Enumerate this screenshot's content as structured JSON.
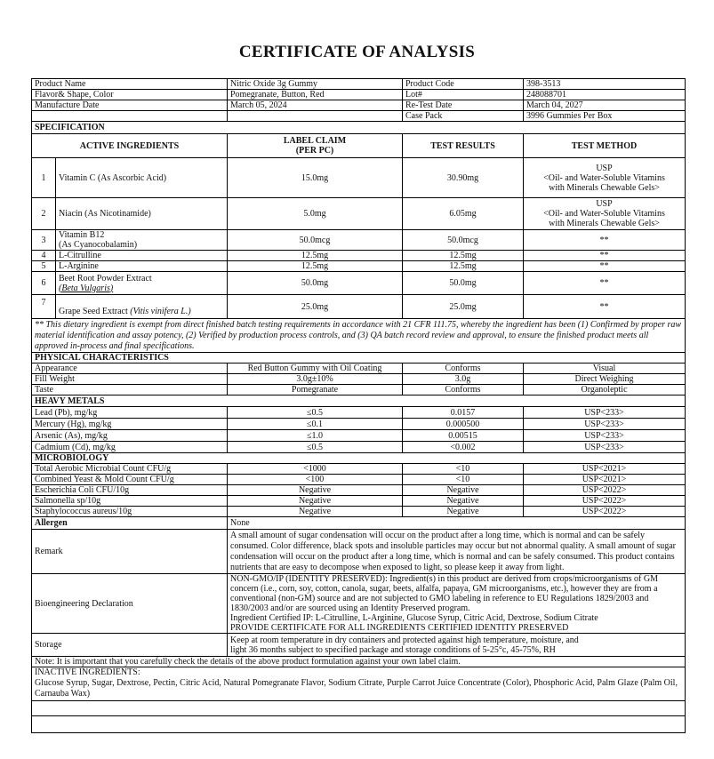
{
  "title": "CERTIFICATE OF ANALYSIS",
  "info": {
    "product_name_label": "Product Name",
    "product_name": "Nitric Oxide 3g Gummy",
    "product_code_label": "Product Code",
    "product_code": "398-3513",
    "flavor_label": "Flavor& Shape, Color",
    "flavor": "Pomegranate, Button, Red",
    "lot_label": "Lot#",
    "lot": "248088701",
    "mfg_label": "Manufacture Date",
    "mfg": "March 05, 2024",
    "retest_label": "Re-Test Date",
    "retest": "March 04, 2027",
    "case_label": "Case Pack",
    "case": "3996 Gummies Per Box"
  },
  "specification": {
    "heading": "SPECIFICATION",
    "headers": {
      "ingredients": "ACTIVE INGREDIENTS",
      "claim_1": "LABEL CLAIM",
      "claim_2": "(PER PC)",
      "results": "TEST RESULTS",
      "method": "TEST METHOD"
    },
    "rows": [
      {
        "num": "1",
        "name": "Vitamin C (As Ascorbic Acid)",
        "claim": "15.0mg",
        "result": "30.90mg",
        "method_1": "USP",
        "method_2": "<Oil- and Water-Soluble Vitamins",
        "method_3": "with Minerals Chewable Gels>"
      },
      {
        "num": "2",
        "name": "Niacin (As Nicotinamide)",
        "claim": "5.0mg",
        "result": "6.05mg",
        "method_1": "USP",
        "method_2": "<Oil- and Water-Soluble Vitamins",
        "method_3": "with Minerals Chewable Gels>"
      },
      {
        "num": "3",
        "name": "Vitamin B12",
        "name_2": "(As Cyanocobalamin)",
        "claim": "50.0mcg",
        "result": "50.0mcg",
        "method": "**"
      },
      {
        "num": "4",
        "name": "L-Citrulline",
        "claim": "12.5mg",
        "result": "12.5mg",
        "method": "**"
      },
      {
        "num": "5",
        "name": "L-Arginine",
        "claim": "12.5mg",
        "result": "12.5mg",
        "method": "**"
      },
      {
        "num": "6",
        "name": "Beet Root Powder Extract",
        "name_2": "(Beta Vulgaris)",
        "claim": "50.0mg",
        "result": "50.0mg",
        "method": "**"
      },
      {
        "num": "7",
        "name": "Grape Seed Extract ",
        "name_2": "(Vitis vinifera L.)",
        "claim": "25.0mg",
        "result": "25.0mg",
        "method": "**"
      }
    ],
    "footnote": "** This dietary ingredient is exempt from direct finished batch testing requirements in accordance with 21 CFR 111.75, whereby the ingredient has been (1) Confirmed by proper raw material identification and assay potency, (2) Verified by production process controls, and (3) QA batch record review and approval, to ensure the finished product meets all approved in-process and final specifications."
  },
  "physical": {
    "heading": "PHYSICAL CHARACTERISTICS",
    "rows": [
      {
        "name": "Appearance",
        "spec": "Red Button Gummy with Oil Coating",
        "result": "Conforms",
        "method": "Visual"
      },
      {
        "name": "Fill Weight",
        "spec": "3.0g±10%",
        "result": "3.0g",
        "method": "Direct Weighing"
      },
      {
        "name": "Taste",
        "spec": "Pomegranate",
        "result": "Conforms",
        "method": "Organoleptic"
      }
    ]
  },
  "heavy_metals": {
    "heading": "HEAVY METALS",
    "rows": [
      {
        "name": "Lead (Pb), mg/kg",
        "spec": "≤0.5",
        "result": "0.0157",
        "method": "USP<233>"
      },
      {
        "name": "Mercury (Hg), mg/kg",
        "spec": "≤0.1",
        "result": "0.000500",
        "method": "USP<233>"
      },
      {
        "name": "Arsenic (As), mg/kg",
        "spec": "≤1.0",
        "result": "0.00515",
        "method": "USP<233>"
      },
      {
        "name": "Cadmium (Cd), mg/kg",
        "spec": "≤0.5",
        "result": "<0.002",
        "method": "USP<233>"
      }
    ]
  },
  "microbiology": {
    "heading": "MICROBIOLOGY",
    "rows": [
      {
        "name": "Total Aerobic Microbial Count CFU/g",
        "spec": "<1000",
        "result": "<10",
        "method": "USP<2021>"
      },
      {
        "name": "Combined Yeast & Mold Count CFU/g",
        "spec": "<100",
        "result": "<10",
        "method": "USP<2021>"
      },
      {
        "name": "Escherichia Coli CFU/10g",
        "spec": "Negative",
        "result": "Negative",
        "method": "USP<2022>"
      },
      {
        "name": "Salmonella sp/10g",
        "spec": "Negative",
        "result": "Negative",
        "method": "USP<2022>"
      },
      {
        "name": "Staphylococcus aureus/10g",
        "spec": "Negative",
        "result": "Negative",
        "method": "USP<2022>"
      }
    ]
  },
  "allergen": {
    "label": "Allergen",
    "value": "None"
  },
  "remark": {
    "label": "Remark",
    "value": "A small amount of sugar condensation will occur on the product after a long time, which is normal and can be safely consumed. Color difference, black spots and insoluble particles may occur but not abnormal quality. A small amount of sugar condensation will occur on the product after a long time, which is normal and can be safely consumed. This product contains nutrients that are easy to decompose when exposed to light, so please keep it away from light."
  },
  "bioengineering": {
    "label": "Bioengineering Declaration",
    "line_1": "NON-GMO/IP (IDENTITY PRESERVED): Ingredient(s) in this product are derived from crops/microorganisms of GM concern (i.e., corn, soy, cotton, canola, sugar, beets, alfalfa, papaya, GM microorganisms, etc.), however they are from a conventional (non-GM) source and are not subjected to GMO labeling in reference to EU Regulations 1829/2003 and 1830/2003 and/or are sourced using an Identity Preserved program.",
    "line_2": "Ingredient Certified IP: L-Citrulline, L-Arginine, Glucose Syrup, Citric Acid, Dextrose, Sodium Citrate",
    "line_3": "PROVIDE CERTIFICATE FOR ALL INGREDIENTS CERTIFIED IDENTITY PRESERVED"
  },
  "storage": {
    "label": "Storage",
    "line_1": "Keep at room temperature in dry containers and protected against high temperature, moisture, and",
    "line_2": "light 36 months subject to specified package and storage conditions of 5-25°c, 45-75%, RH"
  },
  "note": "Note: It is important that you carefully check the details of the above product formulation against your own label claim.",
  "inactive": {
    "heading": "INACTIVE INGREDIENTS:",
    "value": "Glucose Syrup, Sugar, Dextrose, Pectin, Citric Acid, Natural Pomegranate Flavor, Sodium Citrate, Purple Carrot Juice Concentrate (Color), Phosphoric Acid, Palm Glaze (Palm Oil, Carnauba Wax)"
  }
}
